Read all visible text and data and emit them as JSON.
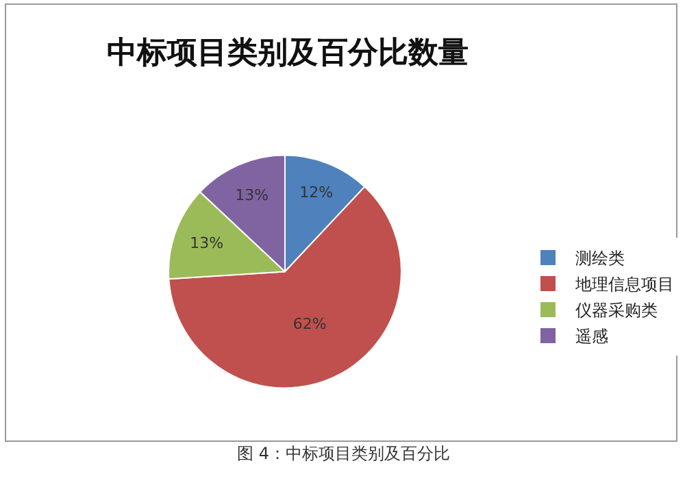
{
  "chart_data": {
    "type": "pie",
    "title": "中标项目类别及百分比数量",
    "categories": [
      "测绘类",
      "地理信息项目",
      "仪器采购类",
      "遥感"
    ],
    "values": [
      12,
      62,
      13,
      13
    ],
    "value_labels": [
      "12%",
      "62%",
      "13%",
      "13%"
    ],
    "colors": [
      "#4f81bd",
      "#c0504d",
      "#9bbb59",
      "#8064a2"
    ],
    "legend": "right",
    "annotations": [
      "图 4：中标项目类别及百分比"
    ]
  }
}
